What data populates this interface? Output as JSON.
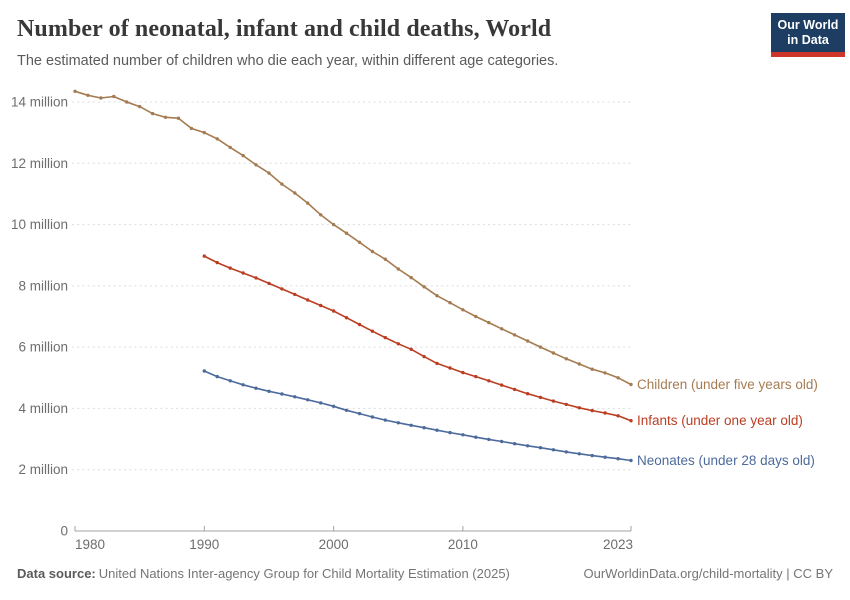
{
  "header": {
    "title": "Number of neonatal, infant and child deaths, World",
    "subtitle": "The estimated number of children who die each year, within different age categories."
  },
  "logo": {
    "line1": "Our World",
    "line2": "in Data",
    "bg_color": "#1d3d63",
    "accent_color": "#cc3527"
  },
  "chart_data": {
    "type": "line",
    "title": "Number of neonatal, infant and child deaths, World",
    "xlabel": "",
    "ylabel": "",
    "y_unit": "million deaths per year",
    "grid": true,
    "legend_position": "right-of-line-ends",
    "x_range": [
      1980,
      2023
    ],
    "x_ticks": [
      1980,
      1990,
      2000,
      2010,
      2023
    ],
    "ylim": [
      0,
      14.6
    ],
    "y_ticks": [
      {
        "value": 0,
        "label": "0"
      },
      {
        "value": 2,
        "label": "2 million"
      },
      {
        "value": 4,
        "label": "4 million"
      },
      {
        "value": 6,
        "label": "6 million"
      },
      {
        "value": 8,
        "label": "8 million"
      },
      {
        "value": 10,
        "label": "10 million"
      },
      {
        "value": 12,
        "label": "12 million"
      },
      {
        "value": 14,
        "label": "14 million"
      }
    ],
    "series": [
      {
        "name": "children-under-five",
        "label": "Children (under five years old)",
        "color": "#a57c52",
        "start_year": 1980,
        "values": [
          14.35,
          14.22,
          14.13,
          14.18,
          14.0,
          13.85,
          13.62,
          13.5,
          13.47,
          13.14,
          13.0,
          12.8,
          12.52,
          12.25,
          11.95,
          11.68,
          11.32,
          11.03,
          10.7,
          10.32,
          10.0,
          9.72,
          9.42,
          9.12,
          8.87,
          8.55,
          8.27,
          7.97,
          7.68,
          7.45,
          7.22,
          7.0,
          6.8,
          6.6,
          6.4,
          6.2,
          6.0,
          5.81,
          5.62,
          5.45,
          5.28,
          5.16,
          5.0,
          4.78
        ]
      },
      {
        "name": "infants-under-one",
        "label": "Infants (under one year old)",
        "color": "#bb3e22",
        "start_year": 1990,
        "values": [
          8.97,
          8.76,
          8.58,
          8.42,
          8.26,
          8.08,
          7.9,
          7.72,
          7.54,
          7.36,
          7.18,
          6.96,
          6.74,
          6.52,
          6.31,
          6.11,
          5.93,
          5.69,
          5.47,
          5.32,
          5.17,
          5.04,
          4.9,
          4.76,
          4.62,
          4.48,
          4.36,
          4.24,
          4.13,
          4.02,
          3.93,
          3.85,
          3.76,
          3.6
        ]
      },
      {
        "name": "neonates-under-28-days",
        "label": "Neonates (under 28 days old)",
        "color": "#4c6a9c",
        "start_year": 1990,
        "values": [
          5.22,
          5.04,
          4.9,
          4.77,
          4.66,
          4.56,
          4.47,
          4.38,
          4.28,
          4.18,
          4.07,
          3.94,
          3.83,
          3.72,
          3.62,
          3.53,
          3.45,
          3.37,
          3.29,
          3.21,
          3.14,
          3.06,
          2.99,
          2.92,
          2.85,
          2.78,
          2.72,
          2.65,
          2.58,
          2.52,
          2.46,
          2.41,
          2.36,
          2.3
        ]
      }
    ]
  },
  "footer": {
    "source_label": "Data source:",
    "source_text": "United Nations Inter-agency Group for Child Mortality Estimation (2025)",
    "attribution": "OurWorldinData.org/child-mortality | CC BY"
  }
}
